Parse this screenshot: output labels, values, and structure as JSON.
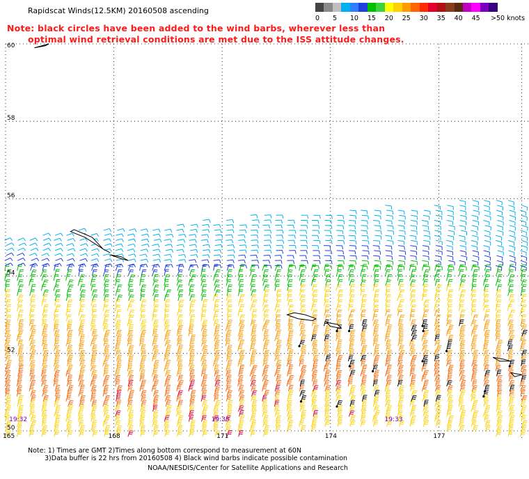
{
  "title": "Rapidscat Winds(12.5KM) 20160508 ascending",
  "note": {
    "line1": "Note: black circles have been added to the wind barbs, wherever less than",
    "line2": "optimal wind retrieval conditions are met due to the ISS attitude changes."
  },
  "legend": {
    "unit_label": ">50 knots",
    "bins": [
      {
        "label": "0",
        "color": "#444444"
      },
      {
        "label": "",
        "color": "#8a8a8a"
      },
      {
        "label": "5",
        "color": "#bfbfbf"
      },
      {
        "label": "",
        "color": "#00b0f0"
      },
      {
        "label": "10",
        "color": "#2d7fff"
      },
      {
        "label": "",
        "color": "#1f3fe0"
      },
      {
        "label": "15",
        "color": "#00c000"
      },
      {
        "label": "",
        "color": "#3fd23f"
      },
      {
        "label": "20",
        "color": "#ffff00"
      },
      {
        "label": "",
        "color": "#ffd000"
      },
      {
        "label": "25",
        "color": "#ff9a00"
      },
      {
        "label": "",
        "color": "#ff6400"
      },
      {
        "label": "30",
        "color": "#ff2a00"
      },
      {
        "label": "",
        "color": "#e0002a"
      },
      {
        "label": "35",
        "color": "#b01010"
      },
      {
        "label": "",
        "color": "#8b3a1a"
      },
      {
        "label": "40",
        "color": "#5a2a10"
      },
      {
        "label": "",
        "color": "#c000c0"
      },
      {
        "label": "45",
        "color": "#ff00ff"
      },
      {
        "label": "",
        "color": "#7a00c0"
      },
      {
        "label": "",
        "color": "#3a0080"
      }
    ]
  },
  "chart_data": {
    "type": "scatter",
    "description_of_marks": "wind barbs",
    "xlim": [
      165,
      179.5
    ],
    "ylim": [
      49.8,
      60
    ],
    "x_ticks": [
      "165",
      "168",
      "171",
      "174",
      "177"
    ],
    "y_ticks": [
      "60",
      "58",
      "56",
      "54",
      "52",
      "50"
    ],
    "x_tick_values": [
      165,
      168,
      171,
      174,
      177
    ],
    "y_tick_values": [
      60,
      58,
      56,
      54,
      52,
      50
    ],
    "grid": true,
    "time_labels": [
      {
        "text": "19:32",
        "lon": 165.1,
        "lat": 50.3
      },
      {
        "text": "19:33",
        "lon": 170.7,
        "lat": 50.3
      },
      {
        "text": "19:33",
        "lon": 175.5,
        "lat": 50.3
      }
    ],
    "speed_zones": [
      {
        "lat_min": 54.6,
        "lat_max": 56.0,
        "speed_kt": 10,
        "color": "#00b0f0"
      },
      {
        "lat_min": 54.2,
        "lat_max": 54.6,
        "speed_kt": 12,
        "color": "#1f3fe0"
      },
      {
        "lat_min": 53.5,
        "lat_max": 54.2,
        "speed_kt": 17,
        "color": "#00c000"
      },
      {
        "lat_min": 52.8,
        "lat_max": 53.5,
        "speed_kt": 20,
        "color": "#ffd000"
      },
      {
        "lat_min": 51.6,
        "lat_max": 52.8,
        "speed_kt": 27,
        "color": "#ff9a00"
      },
      {
        "lat_min": 50.8,
        "lat_max": 51.6,
        "speed_kt": 30,
        "color": "#ff6400"
      },
      {
        "lat_min": 49.8,
        "lat_max": 50.8,
        "speed_kt": 22,
        "color": "#ffd000"
      }
    ]
  },
  "footer": {
    "line1": "Note: 1) Times are GMT 2)Times along bottom correspond to measurement at 60N",
    "line2": "3)Data buffer is 22 hrs from 20160508 4) Black wind barbs indicate possible contamination",
    "line3": "NOAA/NESDIS/Center for Satellite Applications and Research"
  }
}
